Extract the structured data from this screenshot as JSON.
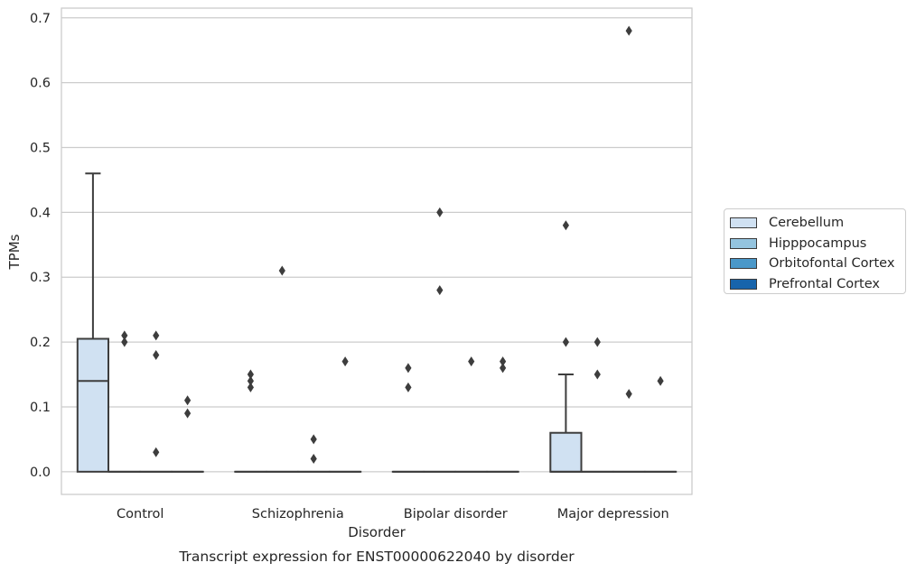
{
  "chart_data": {
    "type": "box",
    "title": "Transcript expression for ENST00000622040 by disorder",
    "xlabel": "Disorder",
    "ylabel": "TPMs",
    "ylim": [
      -0.035,
      0.715
    ],
    "yticks": [
      0.0,
      0.1,
      0.2,
      0.3,
      0.4,
      0.5,
      0.6,
      0.7
    ],
    "ytick_labels": [
      "0.0",
      "0.1",
      "0.2",
      "0.3",
      "0.4",
      "0.5",
      "0.6",
      "0.7"
    ],
    "grid": "horizontal",
    "legend_position": "right",
    "categories": [
      "Control",
      "Schizophrenia",
      "Bipolar disorder",
      "Major depression"
    ],
    "series": [
      {
        "name": "Cerebellum",
        "color": "#d0e1f2",
        "boxes": [
          {
            "whisker_low": 0.0,
            "q1": 0.0,
            "median": 0.14,
            "q3": 0.205,
            "whisker_high": 0.46,
            "outliers": []
          },
          {
            "whisker_low": 0.0,
            "q1": 0.0,
            "median": 0.0,
            "q3": 0.0,
            "whisker_high": 0.0,
            "outliers": [
              0.13,
              0.14,
              0.15
            ]
          },
          {
            "whisker_low": 0.0,
            "q1": 0.0,
            "median": 0.0,
            "q3": 0.0,
            "whisker_high": 0.0,
            "outliers": [
              0.13,
              0.16
            ]
          },
          {
            "whisker_low": 0.0,
            "q1": 0.0,
            "median": 0.0,
            "q3": 0.06,
            "whisker_high": 0.15,
            "outliers": [
              0.2,
              0.38
            ]
          }
        ]
      },
      {
        "name": "Hipppocampus",
        "color": "#94c4df",
        "boxes": [
          {
            "whisker_low": 0.0,
            "q1": 0.0,
            "median": 0.0,
            "q3": 0.0,
            "whisker_high": 0.0,
            "outliers": [
              0.2,
              0.21
            ]
          },
          {
            "whisker_low": 0.0,
            "q1": 0.0,
            "median": 0.0,
            "q3": 0.0,
            "whisker_high": 0.0,
            "outliers": [
              0.31
            ]
          },
          {
            "whisker_low": 0.0,
            "q1": 0.0,
            "median": 0.0,
            "q3": 0.0,
            "whisker_high": 0.0,
            "outliers": [
              0.28,
              0.4
            ]
          },
          {
            "whisker_low": 0.0,
            "q1": 0.0,
            "median": 0.0,
            "q3": 0.0,
            "whisker_high": 0.0,
            "outliers": [
              0.15,
              0.2
            ]
          }
        ]
      },
      {
        "name": "Orbitofontal Cortex",
        "color": "#4a98c9",
        "boxes": [
          {
            "whisker_low": 0.0,
            "q1": 0.0,
            "median": 0.0,
            "q3": 0.0,
            "whisker_high": 0.0,
            "outliers": [
              0.03,
              0.18,
              0.21
            ]
          },
          {
            "whisker_low": 0.0,
            "q1": 0.0,
            "median": 0.0,
            "q3": 0.0,
            "whisker_high": 0.0,
            "outliers": [
              0.02,
              0.05
            ]
          },
          {
            "whisker_low": 0.0,
            "q1": 0.0,
            "median": 0.0,
            "q3": 0.0,
            "whisker_high": 0.0,
            "outliers": [
              0.17
            ]
          },
          {
            "whisker_low": 0.0,
            "q1": 0.0,
            "median": 0.0,
            "q3": 0.0,
            "whisker_high": 0.0,
            "outliers": [
              0.12,
              0.68
            ]
          }
        ]
      },
      {
        "name": "Prefrontal Cortex",
        "color": "#1764ab",
        "boxes": [
          {
            "whisker_low": 0.0,
            "q1": 0.0,
            "median": 0.0,
            "q3": 0.0,
            "whisker_high": 0.0,
            "outliers": [
              0.09,
              0.11
            ]
          },
          {
            "whisker_low": 0.0,
            "q1": 0.0,
            "median": 0.0,
            "q3": 0.0,
            "whisker_high": 0.0,
            "outliers": [
              0.17
            ]
          },
          {
            "whisker_low": 0.0,
            "q1": 0.0,
            "median": 0.0,
            "q3": 0.0,
            "whisker_high": 0.0,
            "outliers": [
              0.16,
              0.17
            ]
          },
          {
            "whisker_low": 0.0,
            "q1": 0.0,
            "median": 0.0,
            "q3": 0.0,
            "whisker_high": 0.0,
            "outliers": [
              0.14
            ]
          }
        ]
      }
    ]
  }
}
